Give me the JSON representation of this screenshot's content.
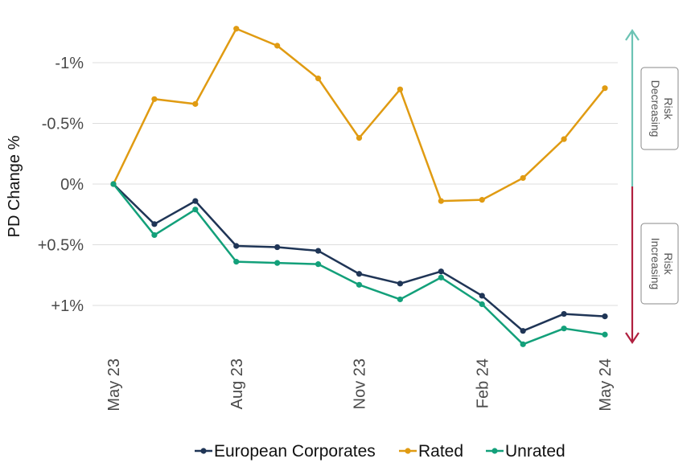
{
  "chart_data": {
    "type": "line",
    "ylabel": "PD Change %",
    "y_tick_labels": [
      "-1%",
      "-0.5%",
      "0%",
      "+0.5%",
      "+1%"
    ],
    "y_tick_values": [
      -1,
      -0.5,
      0,
      0.5,
      1
    ],
    "ylim": [
      -1.3,
      1.3
    ],
    "y_inverted": true,
    "x": [
      "May 23",
      "Jun 23",
      "Jul 23",
      "Aug 23",
      "Sep 23",
      "Oct 23",
      "Nov 23",
      "Dec 23",
      "Jan 24",
      "Feb 24",
      "Mar 24",
      "Apr 24",
      "May 24"
    ],
    "x_tick_labels": [
      "May 23",
      "Aug 23",
      "Nov 23",
      "Feb 24",
      "May 24"
    ],
    "x_tick_indices": [
      0,
      3,
      6,
      9,
      12
    ],
    "series": [
      {
        "name": "European Corporates",
        "color": "#1f3556",
        "values": [
          0,
          0.33,
          0.14,
          0.51,
          0.52,
          0.55,
          0.74,
          0.82,
          0.72,
          0.92,
          1.21,
          1.07,
          1.09
        ]
      },
      {
        "name": "Rated",
        "color": "#e09b12",
        "values": [
          0,
          -0.7,
          -0.66,
          -1.28,
          -1.14,
          -0.87,
          -0.38,
          -0.78,
          0.14,
          0.13,
          -0.05,
          -0.37,
          -0.79
        ]
      },
      {
        "name": "Unrated",
        "color": "#13a07a",
        "values": [
          0,
          0.42,
          0.21,
          0.64,
          0.65,
          0.66,
          0.83,
          0.95,
          0.77,
          0.99,
          1.32,
          1.19,
          1.24
        ]
      }
    ],
    "legend_position": "bottom",
    "annotations": {
      "risk_decreasing": {
        "line1": "Risk",
        "line2": "Decreasing",
        "color": "#6cc3b4"
      },
      "risk_increasing": {
        "line1": "Risk",
        "line2": "Increasing",
        "color": "#b0203f"
      }
    }
  }
}
